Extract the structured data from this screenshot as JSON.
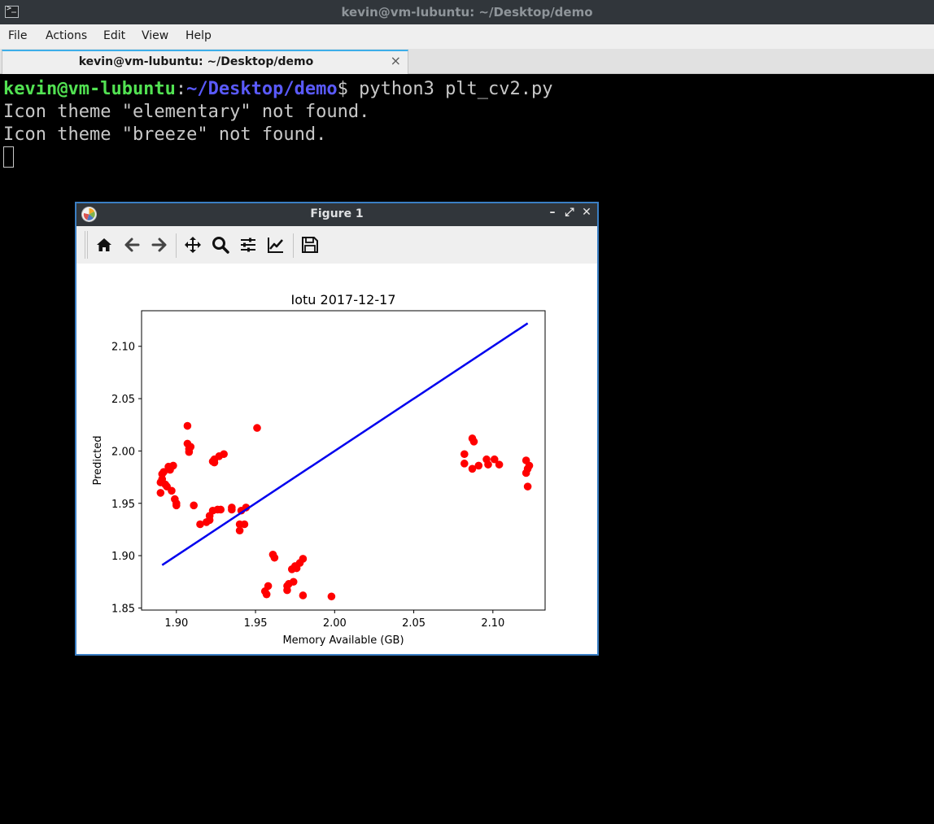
{
  "terminal_window": {
    "title": "kevin@vm-lubuntu: ~/Desktop/demo",
    "menu": [
      "File",
      "Actions",
      "Edit",
      "View",
      "Help"
    ],
    "tab_label": "kevin@vm-lubuntu: ~/Desktop/demo",
    "tab_close": "×",
    "prompt": {
      "user_host": "kevin@vm-lubuntu",
      "separator": ":",
      "path": "~/Desktop/demo",
      "symbol": "$",
      "command": " python3 plt_cv2.py"
    },
    "output_lines": [
      "Icon theme \"elementary\" not found.",
      "Icon theme \"breeze\" not found."
    ]
  },
  "figure_window": {
    "title": "Figure 1",
    "buttons": {
      "minimize": "–",
      "maximize": "⤢",
      "close": "✕"
    },
    "toolbar": [
      {
        "name": "home-icon"
      },
      {
        "name": "back-arrow-icon"
      },
      {
        "name": "forward-arrow-icon"
      },
      {
        "name": "pan-icon"
      },
      {
        "name": "zoom-icon"
      },
      {
        "name": "subplots-config-icon"
      },
      {
        "name": "edit-axis-icon"
      },
      {
        "name": "save-icon"
      }
    ]
  },
  "chart_data": {
    "type": "scatter",
    "title": "Iotu 2017-12-17",
    "xlabel": "Memory Available (GB)",
    "ylabel": "Predicted",
    "xlim": [
      1.878,
      2.133
    ],
    "ylim": [
      1.848,
      2.134
    ],
    "xticks": [
      1.9,
      1.95,
      2.0,
      2.05,
      2.1
    ],
    "xtick_labels": [
      "1.90",
      "1.95",
      "2.00",
      "2.05",
      "2.10"
    ],
    "yticks": [
      1.85,
      1.9,
      1.95,
      2.0,
      2.05,
      2.1
    ],
    "ytick_labels": [
      "1.85",
      "1.90",
      "1.95",
      "2.00",
      "2.05",
      "2.10"
    ],
    "grid": false,
    "colors": {
      "points": "#ff0000",
      "line": "#0000ee"
    },
    "line": {
      "x": [
        1.891,
        2.122
      ],
      "y": [
        1.891,
        2.122
      ]
    },
    "points": [
      [
        1.89,
        1.96
      ],
      [
        1.89,
        1.97
      ],
      [
        1.891,
        1.973
      ],
      [
        1.891,
        1.978
      ],
      [
        1.892,
        1.98
      ],
      [
        1.893,
        1.968
      ],
      [
        1.894,
        1.966
      ],
      [
        1.895,
        1.985
      ],
      [
        1.896,
        1.982
      ],
      [
        1.897,
        1.962
      ],
      [
        1.898,
        1.986
      ],
      [
        1.899,
        1.954
      ],
      [
        1.9,
        1.95
      ],
      [
        1.9,
        1.948
      ],
      [
        1.907,
        2.024
      ],
      [
        1.907,
        2.007
      ],
      [
        1.908,
        2.002
      ],
      [
        1.908,
        1.999
      ],
      [
        1.909,
        2.004
      ],
      [
        1.911,
        1.948
      ],
      [
        1.915,
        1.93
      ],
      [
        1.919,
        1.932
      ],
      [
        1.921,
        1.938
      ],
      [
        1.921,
        1.934
      ],
      [
        1.923,
        1.943
      ],
      [
        1.923,
        1.99
      ],
      [
        1.924,
        1.992
      ],
      [
        1.924,
        1.989
      ],
      [
        1.926,
        1.944
      ],
      [
        1.927,
        1.995
      ],
      [
        1.928,
        1.944
      ],
      [
        1.93,
        1.997
      ],
      [
        1.935,
        1.946
      ],
      [
        1.935,
        1.944
      ],
      [
        1.94,
        1.924
      ],
      [
        1.94,
        1.93
      ],
      [
        1.941,
        1.943
      ],
      [
        1.943,
        1.93
      ],
      [
        1.944,
        1.946
      ],
      [
        1.951,
        2.022
      ],
      [
        1.956,
        1.866
      ],
      [
        1.957,
        1.863
      ],
      [
        1.958,
        1.871
      ],
      [
        1.961,
        1.901
      ],
      [
        1.962,
        1.898
      ],
      [
        1.97,
        1.871
      ],
      [
        1.97,
        1.867
      ],
      [
        1.971,
        1.873
      ],
      [
        1.973,
        1.887
      ],
      [
        1.974,
        1.875
      ],
      [
        1.975,
        1.89
      ],
      [
        1.976,
        1.888
      ],
      [
        1.978,
        1.893
      ],
      [
        1.98,
        1.897
      ],
      [
        1.98,
        1.862
      ],
      [
        1.998,
        1.861
      ],
      [
        2.082,
        1.997
      ],
      [
        2.082,
        1.988
      ],
      [
        2.087,
        2.012
      ],
      [
        2.087,
        1.983
      ],
      [
        2.088,
        2.009
      ],
      [
        2.091,
        1.986
      ],
      [
        2.096,
        1.992
      ],
      [
        2.097,
        1.987
      ],
      [
        2.101,
        1.992
      ],
      [
        2.104,
        1.987
      ],
      [
        2.121,
        1.991
      ],
      [
        2.121,
        1.979
      ],
      [
        2.122,
        1.966
      ],
      [
        2.122,
        1.983
      ],
      [
        2.123,
        1.986
      ]
    ]
  }
}
